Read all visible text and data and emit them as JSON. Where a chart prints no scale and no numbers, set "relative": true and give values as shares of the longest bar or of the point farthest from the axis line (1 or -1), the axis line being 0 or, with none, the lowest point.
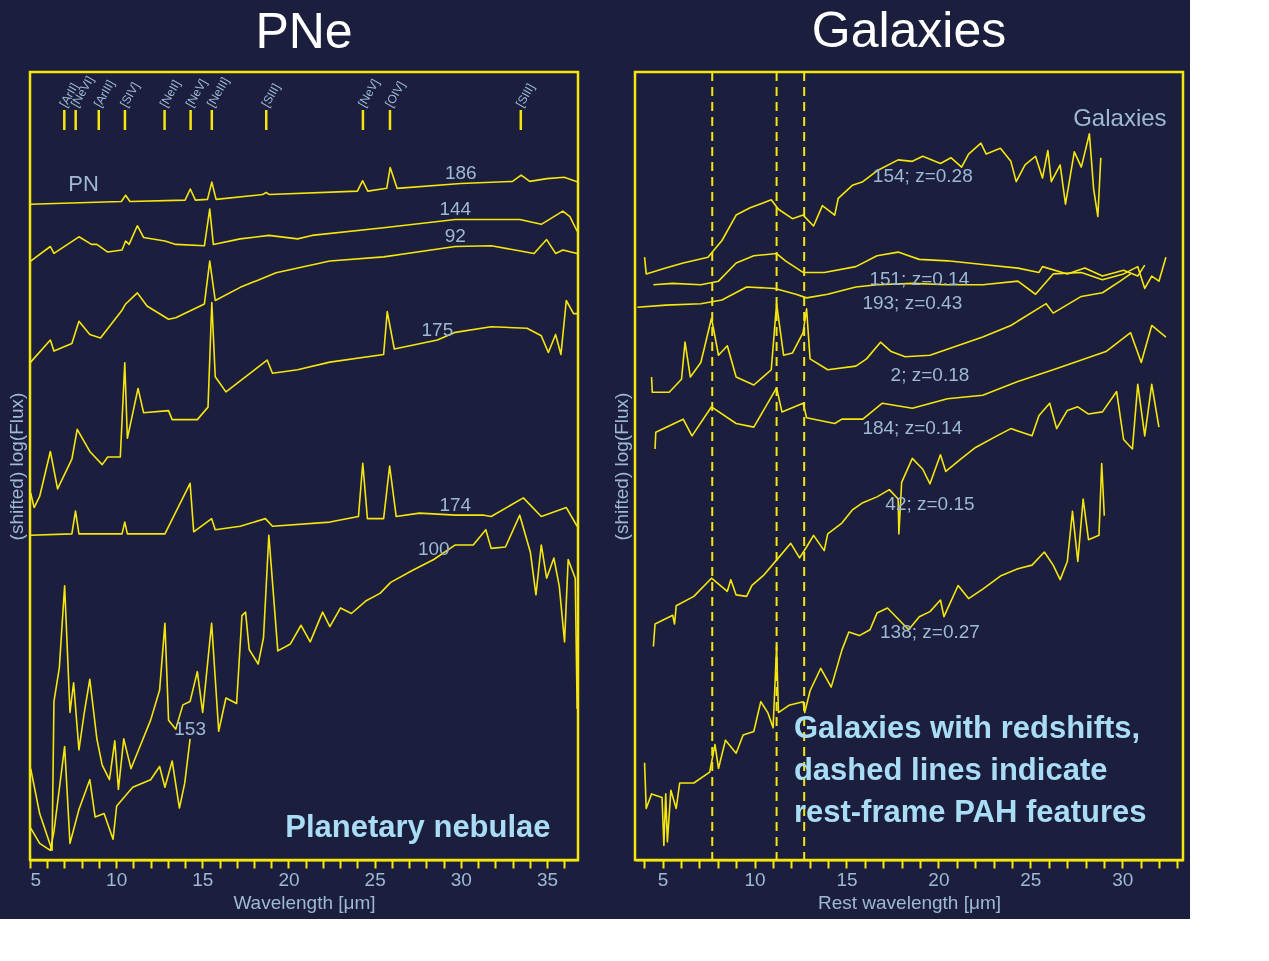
{
  "chart_data": [
    {
      "type": "line",
      "title": "PNe",
      "xlabel": "Wavelength [μm]",
      "ylabel": "(shifted) log(Flux)",
      "relative": true,
      "xlim": [
        5,
        36.8
      ],
      "xticks": [
        5,
        {
          "value": 6,
          "label": null
        },
        {
          "value": 7,
          "label": null
        },
        {
          "value": 8,
          "label": null
        },
        {
          "value": 9,
          "label": null
        },
        10,
        {
          "value": 11,
          "label": null
        },
        {
          "value": 12,
          "label": null
        },
        {
          "value": 13,
          "label": null
        },
        {
          "value": 14,
          "label": null
        },
        15,
        {
          "value": 16,
          "label": null
        },
        {
          "value": 17,
          "label": null
        },
        {
          "value": 18,
          "label": null
        },
        {
          "value": 19,
          "label": null
        },
        20,
        {
          "value": 21,
          "label": null
        },
        {
          "value": 22,
          "label": null
        },
        {
          "value": 23,
          "label": null
        },
        {
          "value": 24,
          "label": null
        },
        25,
        {
          "value": 26,
          "label": null
        },
        {
          "value": 27,
          "label": null
        },
        {
          "value": 28,
          "label": null
        },
        {
          "value": 29,
          "label": null
        },
        30,
        {
          "value": 31,
          "label": null
        },
        {
          "value": 32,
          "label": null
        },
        {
          "value": 33,
          "label": null
        },
        {
          "value": 34,
          "label": null
        },
        35,
        {
          "value": 36,
          "label": null
        }
      ],
      "annotations": [
        "PN",
        "Planetary nebulae"
      ],
      "ref_lines": [
        {
          "axis": "x",
          "value": 6.99,
          "label": "[ArII]"
        },
        {
          "axis": "x",
          "value": 7.65,
          "label": "[NeVI]"
        },
        {
          "axis": "x",
          "value": 8.99,
          "label": "[ArIII]"
        },
        {
          "axis": "x",
          "value": 10.51,
          "label": "[SIV]"
        },
        {
          "axis": "x",
          "value": 12.81,
          "label": "[NeII]"
        },
        {
          "axis": "x",
          "value": 14.32,
          "label": "[NeV]"
        },
        {
          "axis": "x",
          "value": 15.55,
          "label": "[NeIII]"
        },
        {
          "axis": "x",
          "value": 18.71,
          "label": "[SIII]"
        },
        {
          "axis": "x",
          "value": 24.32,
          "label": "[NeV]"
        },
        {
          "axis": "x",
          "value": 25.89,
          "label": "[OIV]"
        },
        {
          "axis": "x",
          "value": 33.48,
          "label": "[SIII]"
        }
      ],
      "series": [
        {
          "name": "186",
          "color": "#f5e60c",
          "x": [
            5.0,
            10.3,
            10.55,
            10.8,
            14.0,
            14.3,
            14.6,
            15.3,
            15.55,
            15.8,
            18.5,
            18.7,
            18.9,
            24.0,
            24.3,
            24.6,
            25.7,
            25.9,
            26.3,
            30.0,
            33.0,
            33.5,
            34.0,
            35.0,
            36.0,
            36.8
          ],
          "values": [
            0.947,
            0.951,
            0.96,
            0.951,
            0.953,
            0.969,
            0.953,
            0.954,
            0.979,
            0.954,
            0.961,
            0.964,
            0.961,
            0.966,
            0.981,
            0.966,
            0.97,
            1.0,
            0.97,
            0.977,
            0.98,
            0.989,
            0.98,
            0.984,
            0.986,
            0.979
          ]
        },
        {
          "name": "144",
          "color": "#f5e60c",
          "x": [
            5.04,
            6.18,
            6.39,
            7.84,
            8.57,
            8.88,
            9.51,
            10.34,
            10.55,
            10.75,
            11.23,
            11.59,
            12.83,
            13.46,
            15.12,
            15.43,
            15.64,
            17.2,
            18.86,
            20.53,
            21.36,
            25.52,
            29.68,
            33.42,
            34.67,
            35.92,
            36.33,
            36.75
          ],
          "values": [
            0.865,
            0.886,
            0.876,
            0.9,
            0.889,
            0.889,
            0.878,
            0.881,
            0.894,
            0.889,
            0.916,
            0.899,
            0.894,
            0.889,
            0.887,
            0.94,
            0.889,
            0.897,
            0.902,
            0.897,
            0.902,
            0.913,
            0.925,
            0.925,
            0.918,
            0.937,
            0.929,
            0.908
          ]
        },
        {
          "name": "92",
          "color": "#f5e60c",
          "x": [
            5.04,
            6.18,
            6.39,
            7.43,
            7.84,
            8.47,
            9.09,
            10.34,
            10.55,
            11.23,
            11.79,
            13.04,
            13.46,
            15.12,
            15.43,
            15.75,
            17.2,
            19.28,
            22.4,
            25.52,
            29.68,
            31.76,
            34.25,
            34.98,
            35.5,
            35.92,
            36.75
          ],
          "values": [
            0.719,
            0.751,
            0.735,
            0.746,
            0.778,
            0.759,
            0.754,
            0.794,
            0.803,
            0.819,
            0.8,
            0.781,
            0.783,
            0.803,
            0.865,
            0.808,
            0.827,
            0.848,
            0.865,
            0.871,
            0.886,
            0.887,
            0.876,
            0.896,
            0.876,
            0.881,
            0.876
          ]
        },
        {
          "name": "175",
          "color": "#f5e60c",
          "x": [
            5.04,
            5.24,
            5.56,
            6.18,
            6.6,
            7.43,
            7.74,
            8.47,
            9.19,
            9.51,
            10.24,
            10.5,
            10.65,
            11.27,
            11.59,
            13.04,
            13.25,
            14.71,
            15.33,
            15.55,
            15.75,
            16.37,
            17.2,
            18.76,
            19.07,
            20.53,
            22.4,
            25.52,
            25.73,
            26.14,
            28.64,
            29.68,
            31.76,
            33.84,
            34.67,
            35.08,
            35.5,
            35.81,
            36.12,
            36.54,
            36.8
          ],
          "values": [
            0.53,
            0.509,
            0.525,
            0.59,
            0.536,
            0.579,
            0.622,
            0.59,
            0.571,
            0.582,
            0.582,
            0.718,
            0.609,
            0.681,
            0.646,
            0.649,
            0.636,
            0.636,
            0.654,
            0.805,
            0.698,
            0.676,
            0.692,
            0.722,
            0.703,
            0.708,
            0.719,
            0.73,
            0.792,
            0.738,
            0.751,
            0.762,
            0.77,
            0.768,
            0.757,
            0.733,
            0.759,
            0.73,
            0.808,
            0.789,
            0.789
          ]
        },
        {
          "name": "174",
          "color": "#f5e60c",
          "x": [
            5.04,
            7.43,
            7.64,
            7.84,
            10.34,
            10.5,
            10.65,
            12.83,
            14.29,
            14.5,
            15.54,
            15.75,
            17.2,
            18.66,
            19.07,
            22.4,
            24.06,
            24.31,
            24.58,
            25.52,
            25.87,
            26.25,
            27.6,
            29.68,
            31.34,
            31.76,
            33.63,
            34.67,
            36.12,
            36.75
          ],
          "values": [
            0.469,
            0.471,
            0.504,
            0.471,
            0.471,
            0.488,
            0.471,
            0.471,
            0.544,
            0.474,
            0.493,
            0.477,
            0.482,
            0.493,
            0.482,
            0.488,
            0.496,
            0.573,
            0.493,
            0.493,
            0.569,
            0.496,
            0.501,
            0.498,
            0.498,
            0.496,
            0.523,
            0.496,
            0.509,
            0.482
          ]
        },
        {
          "name": "100",
          "color": "#f5e60c",
          "x": [
            5.04,
            5.56,
            6.28,
            6.39,
            6.7,
            7.01,
            7.32,
            7.53,
            7.84,
            8.15,
            8.47,
            8.88,
            9.19,
            9.61,
            9.92,
            10.13,
            10.44,
            10.86,
            11.38,
            12.0,
            12.52,
            12.83,
            13.04,
            13.46,
            13.87,
            14.29,
            14.71,
            15.02,
            15.54,
            15.95,
            16.37,
            16.99,
            17.3,
            17.51,
            17.72,
            18.24,
            18.55,
            18.86,
            19.38,
            20.11,
            20.73,
            21.26,
            21.98,
            22.4,
            23.02,
            23.65,
            24.48,
            25.31,
            25.93,
            27.18,
            28.43,
            29.68,
            30.72,
            31.45,
            31.76,
            32.59,
            33.42,
            34.04,
            34.36,
            34.67,
            34.98,
            35.4,
            35.71,
            36.02,
            36.23,
            36.64,
            36.75
          ],
          "values": [
            0.132,
            0.067,
            0.014,
            0.229,
            0.277,
            0.396,
            0.213,
            0.256,
            0.159,
            0.213,
            0.261,
            0.175,
            0.137,
            0.116,
            0.172,
            0.102,
            0.175,
            0.132,
            0.164,
            0.202,
            0.245,
            0.342,
            0.202,
            0.189,
            0.224,
            0.229,
            0.272,
            0.213,
            0.342,
            0.186,
            0.234,
            0.226,
            0.353,
            0.358,
            0.304,
            0.283,
            0.321,
            0.469,
            0.302,
            0.312,
            0.339,
            0.315,
            0.358,
            0.337,
            0.364,
            0.356,
            0.374,
            0.385,
            0.401,
            0.418,
            0.434,
            0.455,
            0.455,
            0.477,
            0.45,
            0.452,
            0.498,
            0.444,
            0.383,
            0.455,
            0.407,
            0.436,
            0.396,
            0.315,
            0.434,
            0.407,
            0.218
          ]
        },
        {
          "name": "153",
          "color": "#f5e60c",
          "x": [
            5.04,
            5.56,
            6.18,
            6.39,
            7.01,
            7.32,
            7.84,
            8.47,
            8.78,
            9.3,
            9.82,
            10.03,
            10.96,
            12.0,
            12.52,
            12.83,
            13.25,
            13.67,
            13.98,
            14.29
          ],
          "values": [
            0.046,
            0.024,
            0.014,
            0.041,
            0.164,
            0.024,
            0.073,
            0.116,
            0.062,
            0.067,
            0.03,
            0.078,
            0.105,
            0.116,
            0.135,
            0.105,
            0.143,
            0.075,
            0.111,
            0.175
          ]
        }
      ]
    },
    {
      "type": "line",
      "title": "Galaxies",
      "xlabel": "Rest wavelength [μm]",
      "ylabel": "(shifted) log(Flux)",
      "relative": true,
      "xlim": [
        3.5,
        33.3
      ],
      "xticks": [
        {
          "value": 4,
          "label": null
        },
        5,
        {
          "value": 6,
          "label": null
        },
        {
          "value": 7,
          "label": null
        },
        {
          "value": 8,
          "label": null
        },
        {
          "value": 9,
          "label": null
        },
        10,
        {
          "value": 11,
          "label": null
        },
        {
          "value": 12,
          "label": null
        },
        {
          "value": 13,
          "label": null
        },
        {
          "value": 14,
          "label": null
        },
        15,
        {
          "value": 16,
          "label": null
        },
        {
          "value": 17,
          "label": null
        },
        {
          "value": 18,
          "label": null
        },
        {
          "value": 19,
          "label": null
        },
        20,
        {
          "value": 21,
          "label": null
        },
        {
          "value": 22,
          "label": null
        },
        {
          "value": 23,
          "label": null
        },
        {
          "value": 24,
          "label": null
        },
        25,
        {
          "value": 26,
          "label": null
        },
        {
          "value": 27,
          "label": null
        },
        {
          "value": 28,
          "label": null
        },
        {
          "value": 29,
          "label": null
        },
        30,
        {
          "value": 31,
          "label": null
        },
        {
          "value": 32,
          "label": null
        },
        {
          "value": 33,
          "label": null
        }
      ],
      "annotations": [
        "Galaxies",
        "Galaxies with redshifts, dashed lines indicate rest-frame PAH features"
      ],
      "ref_lines": [
        {
          "axis": "x",
          "value": 7.7,
          "line_style": "dashed",
          "color": "#f5e60c"
        },
        {
          "axis": "x",
          "value": 11.2,
          "line_style": "dashed",
          "color": "#f5e60c"
        },
        {
          "axis": "x",
          "value": 12.7,
          "line_style": "dashed",
          "color": "#f5e60c"
        }
      ],
      "series": [
        {
          "name": "154; z=0.28",
          "color": "#f5e60c",
          "x": [
            4.02,
            4.11,
            5.17,
            6.12,
            7.47,
            8.23,
            9.0,
            9.76,
            10.91,
            11.3,
            12.06,
            12.64,
            13.21,
            13.69,
            14.36,
            14.55,
            15.32,
            15.89,
            16.66,
            17.81,
            18.58,
            19.15,
            20.11,
            20.68,
            21.26,
            21.64,
            22.31,
            22.6,
            23.37,
            23.94,
            24.23,
            24.71,
            25.28,
            25.66,
            25.95,
            26.14,
            26.62,
            26.91,
            27.39,
            27.77,
            28.21,
            28.44,
            28.67,
            28.83
          ],
          "values": [
            0.83,
            0.807,
            0.815,
            0.822,
            0.83,
            0.853,
            0.888,
            0.898,
            0.909,
            0.896,
            0.883,
            0.888,
            0.873,
            0.901,
            0.888,
            0.911,
            0.929,
            0.934,
            0.949,
            0.964,
            0.962,
            0.969,
            0.959,
            0.967,
            0.954,
            0.972,
            0.987,
            0.972,
            0.98,
            0.962,
            0.934,
            0.957,
            0.969,
            0.939,
            0.977,
            0.934,
            0.957,
            0.903,
            0.975,
            0.954,
            1.0,
            0.924,
            0.886,
            0.967
          ]
        },
        {
          "name": "151; z=0.14",
          "color": "#f5e60c",
          "x": [
            4.5,
            5.55,
            7.08,
            8.04,
            9.0,
            9.96,
            11.2,
            11.68,
            12.64,
            13.79,
            15.51,
            16.66,
            17.81,
            18.96,
            20.49,
            22.41,
            24.32,
            25.47,
            25.66,
            27.01,
            27.96,
            28.92,
            30.07,
            30.84,
            31.22
          ],
          "values": [
            0.792,
            0.794,
            0.792,
            0.797,
            0.822,
            0.832,
            0.835,
            0.825,
            0.809,
            0.809,
            0.817,
            0.832,
            0.837,
            0.827,
            0.825,
            0.82,
            0.815,
            0.809,
            0.817,
            0.807,
            0.815,
            0.804,
            0.812,
            0.804,
            0.819
          ]
        },
        {
          "name": "193; z=0.43",
          "color": "#f5e60c",
          "x": [
            3.63,
            5.17,
            7.08,
            8.23,
            9.57,
            11.11,
            12.25,
            12.83,
            13.98,
            15.51,
            16.66,
            18.58,
            20.49,
            22.41,
            24.32,
            25.28,
            26.24,
            27.77,
            28.92,
            30.07,
            30.84,
            31.22,
            31.6,
            31.99,
            32.37
          ],
          "values": [
            0.761,
            0.764,
            0.766,
            0.771,
            0.789,
            0.787,
            0.779,
            0.774,
            0.779,
            0.789,
            0.792,
            0.794,
            0.792,
            0.792,
            0.797,
            0.779,
            0.807,
            0.809,
            0.799,
            0.807,
            0.817,
            0.787,
            0.804,
            0.797,
            0.83
          ]
        },
        {
          "name": "2; z=0.18",
          "color": "#f5e60c",
          "x": [
            4.4,
            4.44,
            5.36,
            6.03,
            6.22,
            6.51,
            7.08,
            7.66,
            8.04,
            8.52,
            9.0,
            9.96,
            10.91,
            11.2,
            11.58,
            12.06,
            12.64,
            12.83,
            13.02,
            13.98,
            15.51,
            16.09,
            16.85,
            17.43,
            18.19,
            19.54,
            22.41,
            23.94,
            25.86,
            26.24,
            27.77,
            28.92,
            29.88,
            30.45
          ],
          "values": [
            0.665,
            0.644,
            0.644,
            0.662,
            0.713,
            0.665,
            0.685,
            0.746,
            0.695,
            0.708,
            0.665,
            0.654,
            0.675,
            0.766,
            0.695,
            0.698,
            0.726,
            0.759,
            0.69,
            0.675,
            0.68,
            0.69,
            0.713,
            0.7,
            0.693,
            0.695,
            0.72,
            0.736,
            0.766,
            0.753,
            0.776,
            0.781,
            0.797,
            0.807
          ]
        },
        {
          "name": "184; z=0.14",
          "color": "#f5e60c",
          "x": [
            4.59,
            4.63,
            6.12,
            6.6,
            7.66,
            9.0,
            9.96,
            11.2,
            11.49,
            12.64,
            12.83,
            14.36,
            14.75,
            15.89,
            16.95,
            18.58,
            20.49,
            22.41,
            24.32,
            26.24,
            29.11,
            30.45,
            31.03,
            31.6,
            32.37
          ],
          "values": [
            0.566,
            0.589,
            0.607,
            0.584,
            0.624,
            0.601,
            0.596,
            0.65,
            0.617,
            0.629,
            0.609,
            0.601,
            0.607,
            0.607,
            0.629,
            0.622,
            0.635,
            0.64,
            0.659,
            0.675,
            0.7,
            0.726,
            0.685,
            0.736,
            0.72
          ]
        },
        {
          "name": "42; z=0.15",
          "color": "#f5e60c",
          "x": [
            4.5,
            4.59,
            5.55,
            5.65,
            5.74,
            6.7,
            7.66,
            8.52,
            8.71,
            9.0,
            9.57,
            9.86,
            10.53,
            11.3,
            11.97,
            12.45,
            12.83,
            13.21,
            13.79,
            13.98,
            14.75,
            15.32,
            15.89,
            16.66,
            17.33,
            17.81,
            17.85,
            18.0,
            18.58,
            19.15,
            19.54,
            20.11,
            20.4,
            21.26,
            22.02,
            23.18,
            23.94,
            25.09,
            25.47,
            26.05,
            26.43,
            27.01,
            27.58,
            28.16,
            28.92,
            29.69,
            30.07,
            30.55,
            30.84,
            31.22,
            31.6,
            31.99
          ],
          "values": [
            0.294,
            0.325,
            0.337,
            0.325,
            0.35,
            0.363,
            0.388,
            0.37,
            0.386,
            0.365,
            0.363,
            0.378,
            0.393,
            0.416,
            0.436,
            0.416,
            0.431,
            0.447,
            0.426,
            0.449,
            0.464,
            0.482,
            0.492,
            0.5,
            0.51,
            0.497,
            0.449,
            0.52,
            0.553,
            0.538,
            0.518,
            0.558,
            0.535,
            0.553,
            0.568,
            0.584,
            0.594,
            0.584,
            0.612,
            0.629,
            0.594,
            0.619,
            0.624,
            0.614,
            0.617,
            0.645,
            0.579,
            0.566,
            0.655,
            0.584,
            0.655,
            0.596
          ]
        },
        {
          "name": "138; z=0.27",
          "color": "#f5e60c",
          "x": [
            4.02,
            4.11,
            4.4,
            4.97,
            5.07,
            5.17,
            5.26,
            5.45,
            5.74,
            5.93,
            6.7,
            7.56,
            7.85,
            8.04,
            8.42,
            9.0,
            9.38,
            9.96,
            10.34,
            10.72,
            11.01,
            11.2,
            11.3,
            11.87,
            12.64,
            12.73,
            13.02,
            13.6,
            14.17,
            14.75,
            15.13,
            15.7,
            16.28,
            16.66,
            17.23,
            18.38,
            18.96,
            19.54,
            20.11,
            20.3,
            21.07,
            21.64,
            22.41,
            23.37,
            24.32,
            25.09,
            25.76,
            26.24,
            26.62,
            27.01,
            27.29,
            27.58,
            27.87,
            28.16,
            28.73,
            28.88,
            29.02
          ],
          "values": [
            0.134,
            0.071,
            0.091,
            0.086,
            0.02,
            0.091,
            0.025,
            0.096,
            0.071,
            0.106,
            0.106,
            0.121,
            0.159,
            0.126,
            0.165,
            0.147,
            0.172,
            0.177,
            0.218,
            0.203,
            0.182,
            0.294,
            0.203,
            0.213,
            0.218,
            0.203,
            0.233,
            0.264,
            0.238,
            0.289,
            0.314,
            0.309,
            0.317,
            0.34,
            0.347,
            0.317,
            0.335,
            0.342,
            0.358,
            0.335,
            0.378,
            0.36,
            0.373,
            0.391,
            0.401,
            0.406,
            0.424,
            0.406,
            0.386,
            0.411,
            0.48,
            0.411,
            0.497,
            0.441,
            0.447,
            0.546,
            0.474
          ]
        }
      ]
    }
  ]
}
